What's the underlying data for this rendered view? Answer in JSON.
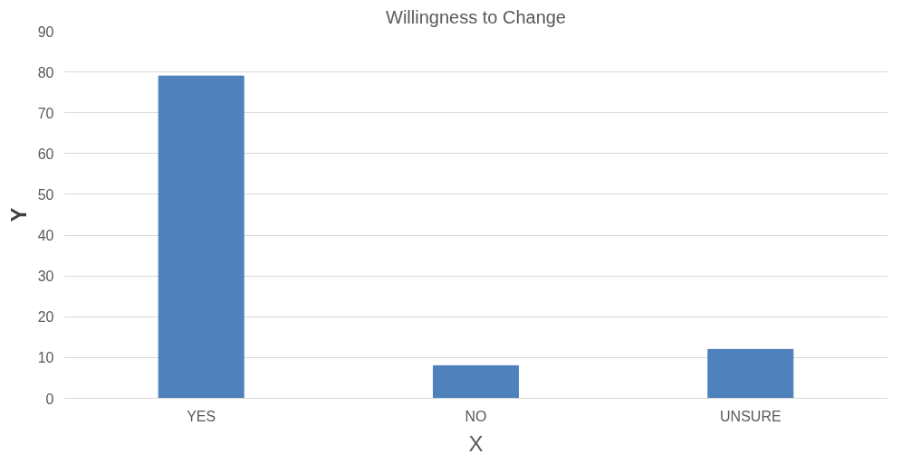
{
  "chart_data": {
    "type": "bar",
    "title": "Willingness to Change",
    "xlabel": "X",
    "ylabel": "Y",
    "categories": [
      "YES",
      "NO",
      "UNSURE"
    ],
    "values": [
      79,
      8,
      12
    ],
    "color": "#4f81bd",
    "ylim": [
      0,
      90
    ],
    "yticks": [
      0,
      10,
      20,
      30,
      40,
      50,
      60,
      70,
      80,
      90
    ],
    "grid": "y"
  }
}
